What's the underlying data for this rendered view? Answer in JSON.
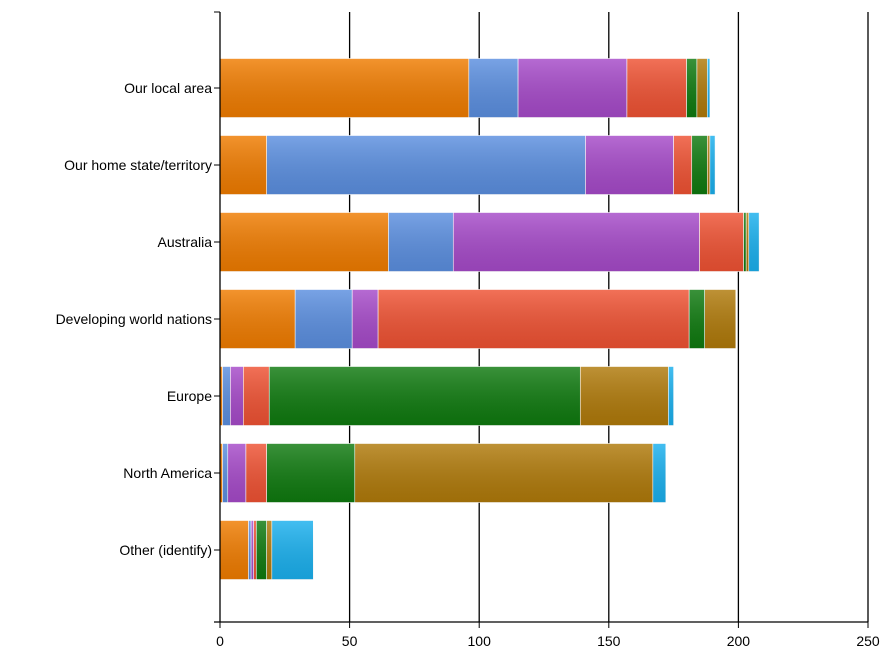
{
  "chart_data": {
    "type": "bar",
    "orientation": "horizontal",
    "stacked": true,
    "categories": [
      "Our local area",
      "Our home state/territory",
      "Australia",
      "Developing world nations",
      "Europe",
      "North America",
      "Other (identify)"
    ],
    "series": [
      {
        "color": "#f07c00",
        "values": [
          96,
          18,
          65,
          29,
          1,
          1,
          11
        ]
      },
      {
        "color": "#5b8fe0",
        "values": [
          19,
          123,
          25,
          22,
          3,
          2,
          1
        ]
      },
      {
        "color": "#a64ac9",
        "values": [
          42,
          34,
          95,
          10,
          5,
          7,
          1
        ]
      },
      {
        "color": "#ef5233",
        "values": [
          23,
          7,
          17,
          120,
          10,
          8,
          1
        ]
      },
      {
        "color": "#0f7a0f",
        "values": [
          4,
          6,
          1,
          6,
          120,
          34,
          4
        ]
      },
      {
        "color": "#b07a0a",
        "values": [
          4,
          1,
          1,
          12,
          34,
          115,
          2
        ]
      },
      {
        "color": "#1ab0ee",
        "values": [
          1,
          2,
          4,
          0,
          2,
          5,
          16
        ]
      }
    ],
    "xlim": [
      0,
      250
    ],
    "xticks": [
      0,
      50,
      100,
      150,
      200,
      250
    ],
    "grid": "vertical",
    "legend": "none"
  }
}
